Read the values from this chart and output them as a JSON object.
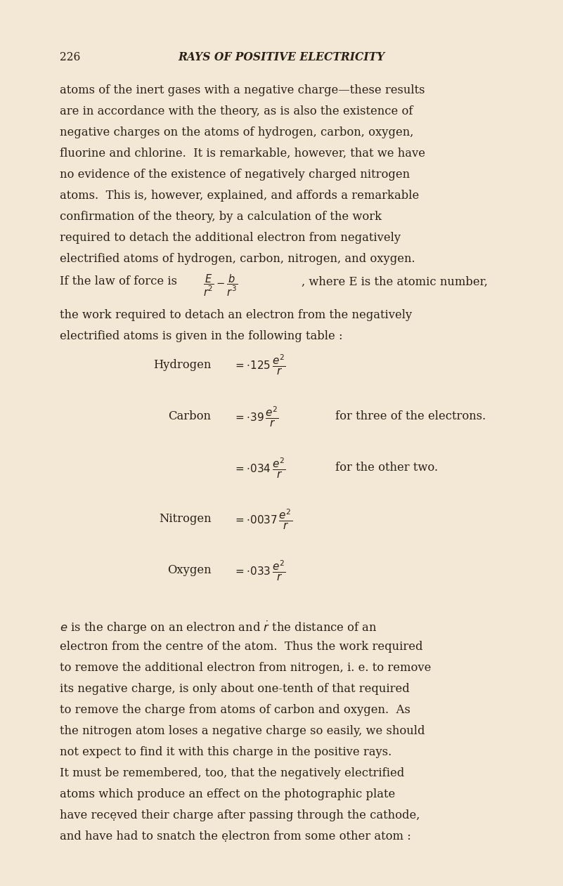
{
  "bg_color": "#f2e8d5",
  "text_color": "#2a2018",
  "page_width": 8.01,
  "page_height": 12.61,
  "dpi": 100,
  "header_num": "226",
  "header_title": "RAYS OF POSITIVE ELECTRICITY",
  "body_lines": [
    "atoms of the inert gases with a negative charge—these results",
    "are in accordance with the theory, as is also the existence of",
    "negative charges on the atoms of hydrogen, carbon, oxygen,",
    "fluorine and chlorine.  It is remarkable, however, that we have",
    "no evidence of the existence of negatively charged nitrogen",
    "atoms.  This is, however, explained, and affords a remarkable",
    "confirmation of the theory, by a calculation of the work",
    "required to detach the additional electron from negatively",
    "electrified atoms of hydrogen, carbon, nitrogen, and oxygen."
  ],
  "after_force_lines": [
    "the work required to detach an electron from the negatively",
    "electrified atoms is given in the following table :"
  ],
  "footer_lines": [
    "$e$ is the charge on an electron and $\\dot{r}$ the distance of an",
    "electron from the centre of the atom.  Thus the work required",
    "to remove the additional electron from nitrogen, i. e. to remove",
    "its ne\\u0332gative charge, is only about one-tenth of that required",
    "to remove the charge from atoms of carbon and oxygen.  As",
    "the nitrogen atom loses a negative charge so easily, we should",
    "not expect to find it with this charge in the positive rays.",
    "It must be remembered, too, that the negatively electrified",
    "atoms which produce an effect on the photographic plate",
    "have rece\\u0332ved their charge after passing through the cathode,",
    "and have had to snatch the e\\u0332lectron from some other atom :"
  ]
}
